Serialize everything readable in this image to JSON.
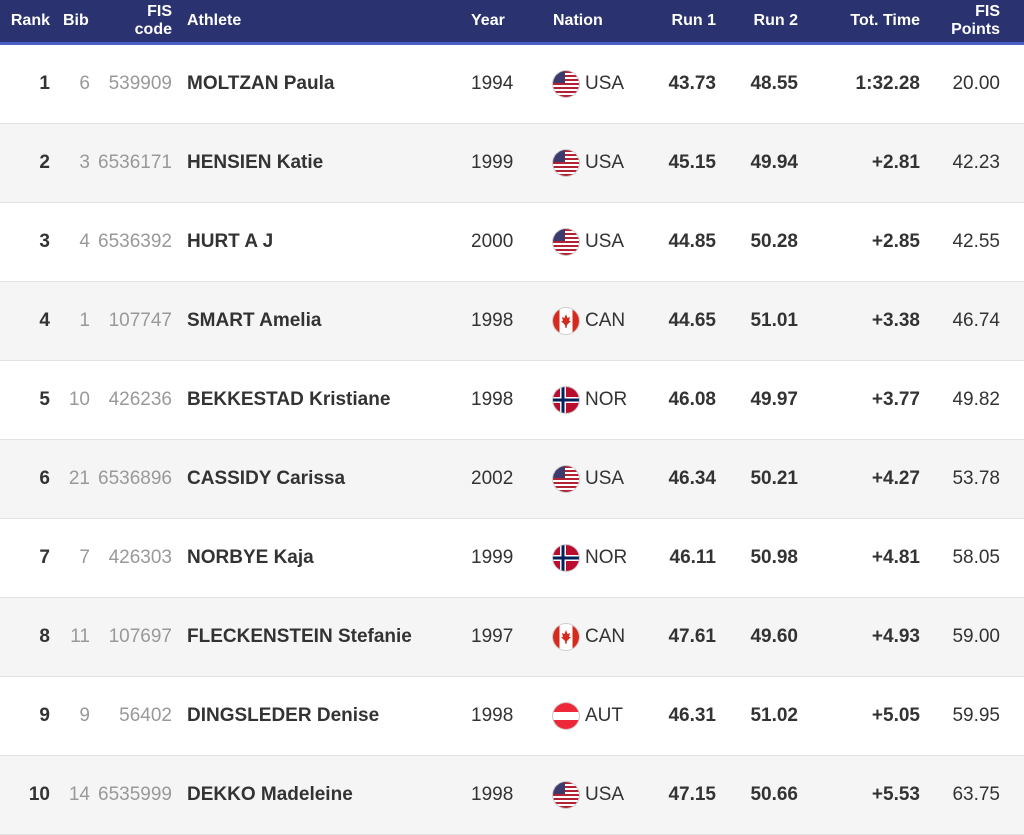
{
  "headers": {
    "rank": "Rank",
    "bib": "Bib",
    "fis_code_1": "FIS",
    "fis_code_2": "code",
    "athlete": "Athlete",
    "year": "Year",
    "nation": "Nation",
    "run1": "Run 1",
    "run2": "Run 2",
    "tot_time": "Tot. Time",
    "fis_points_1": "FIS",
    "fis_points_2": "Points"
  },
  "rows": [
    {
      "rank": "1",
      "bib": "6",
      "fis": "539909",
      "athlete": "MOLTZAN Paula",
      "year": "1994",
      "flag": "usa-flag-icon",
      "nation": "USA",
      "run1": "43.73",
      "run2": "48.55",
      "tot": "1:32.28",
      "points": "20.00"
    },
    {
      "rank": "2",
      "bib": "3",
      "fis": "6536171",
      "athlete": "HENSIEN Katie",
      "year": "1999",
      "flag": "usa-flag-icon",
      "nation": "USA",
      "run1": "45.15",
      "run2": "49.94",
      "tot": "+2.81",
      "points": "42.23"
    },
    {
      "rank": "3",
      "bib": "4",
      "fis": "6536392",
      "athlete": "HURT A J",
      "year": "2000",
      "flag": "usa-flag-icon",
      "nation": "USA",
      "run1": "44.85",
      "run2": "50.28",
      "tot": "+2.85",
      "points": "42.55"
    },
    {
      "rank": "4",
      "bib": "1",
      "fis": "107747",
      "athlete": "SMART Amelia",
      "year": "1998",
      "flag": "canada-flag-icon",
      "nation": "CAN",
      "run1": "44.65",
      "run2": "51.01",
      "tot": "+3.38",
      "points": "46.74"
    },
    {
      "rank": "5",
      "bib": "10",
      "fis": "426236",
      "athlete": "BEKKESTAD Kristiane",
      "year": "1998",
      "flag": "norway-flag-icon",
      "nation": "NOR",
      "run1": "46.08",
      "run2": "49.97",
      "tot": "+3.77",
      "points": "49.82"
    },
    {
      "rank": "6",
      "bib": "21",
      "fis": "6536896",
      "athlete": "CASSIDY Carissa",
      "year": "2002",
      "flag": "usa-flag-icon",
      "nation": "USA",
      "run1": "46.34",
      "run2": "50.21",
      "tot": "+4.27",
      "points": "53.78"
    },
    {
      "rank": "7",
      "bib": "7",
      "fis": "426303",
      "athlete": "NORBYE Kaja",
      "year": "1999",
      "flag": "norway-flag-icon",
      "nation": "NOR",
      "run1": "46.11",
      "run2": "50.98",
      "tot": "+4.81",
      "points": "58.05"
    },
    {
      "rank": "8",
      "bib": "11",
      "fis": "107697",
      "athlete": "FLECKENSTEIN Stefanie",
      "year": "1997",
      "flag": "canada-flag-icon",
      "nation": "CAN",
      "run1": "47.61",
      "run2": "49.60",
      "tot": "+4.93",
      "points": "59.00"
    },
    {
      "rank": "9",
      "bib": "9",
      "fis": "56402",
      "athlete": "DINGSLEDER Denise",
      "year": "1998",
      "flag": "austria-flag-icon",
      "nation": "AUT",
      "run1": "46.31",
      "run2": "51.02",
      "tot": "+5.05",
      "points": "59.95"
    },
    {
      "rank": "10",
      "bib": "14",
      "fis": "6535999",
      "athlete": "DEKKO Madeleine",
      "year": "1998",
      "flag": "usa-flag-icon",
      "nation": "USA",
      "run1": "47.15",
      "run2": "50.66",
      "tot": "+5.53",
      "points": "63.75"
    }
  ],
  "colors": {
    "header_bg": "#2a3370",
    "header_border": "#4a5fc5",
    "row_alt": "#f5f5f5"
  }
}
